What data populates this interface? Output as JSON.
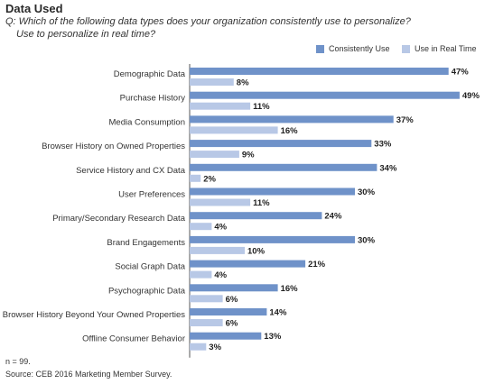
{
  "header": {
    "title": "Data Used",
    "question_line1": "Q: Which of the following data types does your organization consistently use to personalize?",
    "question_line2": "Use to personalize in real time?"
  },
  "legend": {
    "items": [
      {
        "label": "Consistently Use",
        "color": "#6f92c9"
      },
      {
        "label": "Use in Real Time",
        "color": "#b8c8e6"
      }
    ]
  },
  "footer": {
    "n_note": "n = 99.",
    "source": "Source: CEB 2016 Marketing Member Survey."
  },
  "chart_data": {
    "type": "bar",
    "orientation": "horizontal",
    "categories": [
      "Demographic Data",
      "Purchase History",
      "Media Consumption",
      "Browser History on Owned Properties",
      "Service History and CX Data",
      "User Preferences",
      "Primary/Secondary Research Data",
      "Brand Engagements",
      "Social Graph Data",
      "Psychographic Data",
      "Browser History Beyond Your Owned Properties",
      "Offline Consumer Behavior"
    ],
    "series": [
      {
        "name": "Consistently Use",
        "color": "#6f92c9",
        "values": [
          47,
          49,
          37,
          33,
          34,
          30,
          24,
          30,
          21,
          16,
          14,
          13
        ]
      },
      {
        "name": "Use in Real Time",
        "color": "#b8c8e6",
        "values": [
          8,
          11,
          16,
          9,
          2,
          11,
          4,
          10,
          4,
          6,
          6,
          3
        ]
      }
    ],
    "value_suffix": "%",
    "xlim": [
      0,
      50
    ],
    "grid": false,
    "legend_position": "top-right"
  }
}
